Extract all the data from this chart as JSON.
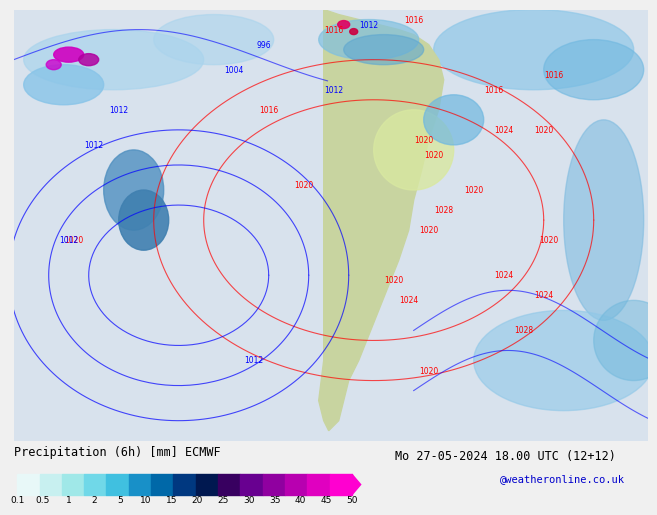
{
  "title_left": "Precipitation (6h) [mm] ECMWF",
  "title_right": "Mo 27-05-2024 18.00 UTC (12+12)",
  "credit": "@weatheronline.co.uk",
  "colorbar_values": [
    0.1,
    0.5,
    1,
    2,
    5,
    10,
    15,
    20,
    25,
    30,
    35,
    40,
    45,
    50
  ],
  "colorbar_colors": [
    "#e0f8f8",
    "#c0f0f0",
    "#90e0e0",
    "#60d0e8",
    "#30b0d8",
    "#1090c8",
    "#0070b0",
    "#004890",
    "#002060",
    "#600080",
    "#900090",
    "#b000a0",
    "#d000b0",
    "#f000c0",
    "#ff40d0"
  ],
  "bg_color": "#f0f0f0",
  "map_bg": "#d8e8f0",
  "land_color": "#c8d8a0",
  "ocean_light": "#ddeeff"
}
